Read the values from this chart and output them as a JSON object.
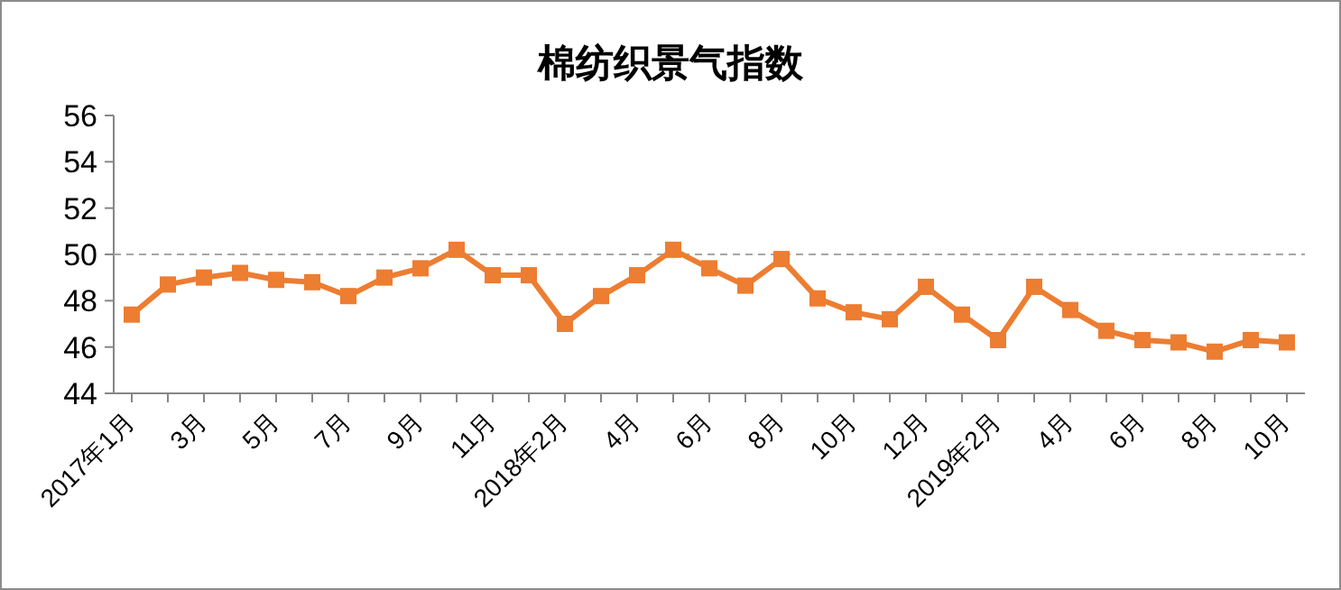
{
  "chart_data": {
    "type": "line",
    "title": "棉纺织景气指数",
    "categories": [
      "2017年1月",
      null,
      "3月",
      null,
      "5月",
      null,
      "7月",
      null,
      "9月",
      null,
      "11月",
      null,
      "2018年2月",
      null,
      "4月",
      null,
      "6月",
      null,
      "8月",
      null,
      "10月",
      null,
      "12月",
      null,
      "2019年2月",
      null,
      "4月",
      null,
      "6月",
      null,
      "8月",
      null,
      "10月"
    ],
    "series": [
      {
        "color": "#ed7d31",
        "values": [
          47.4,
          48.7,
          49.0,
          49.2,
          48.9,
          48.8,
          48.2,
          49.0,
          49.4,
          50.2,
          49.1,
          49.1,
          47.0,
          48.2,
          49.1,
          50.2,
          49.4,
          48.65,
          49.8,
          48.1,
          47.5,
          47.2,
          48.6,
          47.4,
          46.3,
          48.6,
          47.6,
          46.7,
          46.3,
          46.2,
          45.8,
          46.3,
          46.2
        ]
      }
    ],
    "ylim": [
      44,
      56
    ],
    "yticks": [
      44,
      46,
      48,
      50,
      52,
      54,
      56
    ],
    "grid": false,
    "marker": "square",
    "line_style": "solid",
    "ref_lines": [
      {
        "axis": "y",
        "value": 50,
        "color": "#a6a6a6",
        "line_style": "dashed"
      }
    ]
  }
}
